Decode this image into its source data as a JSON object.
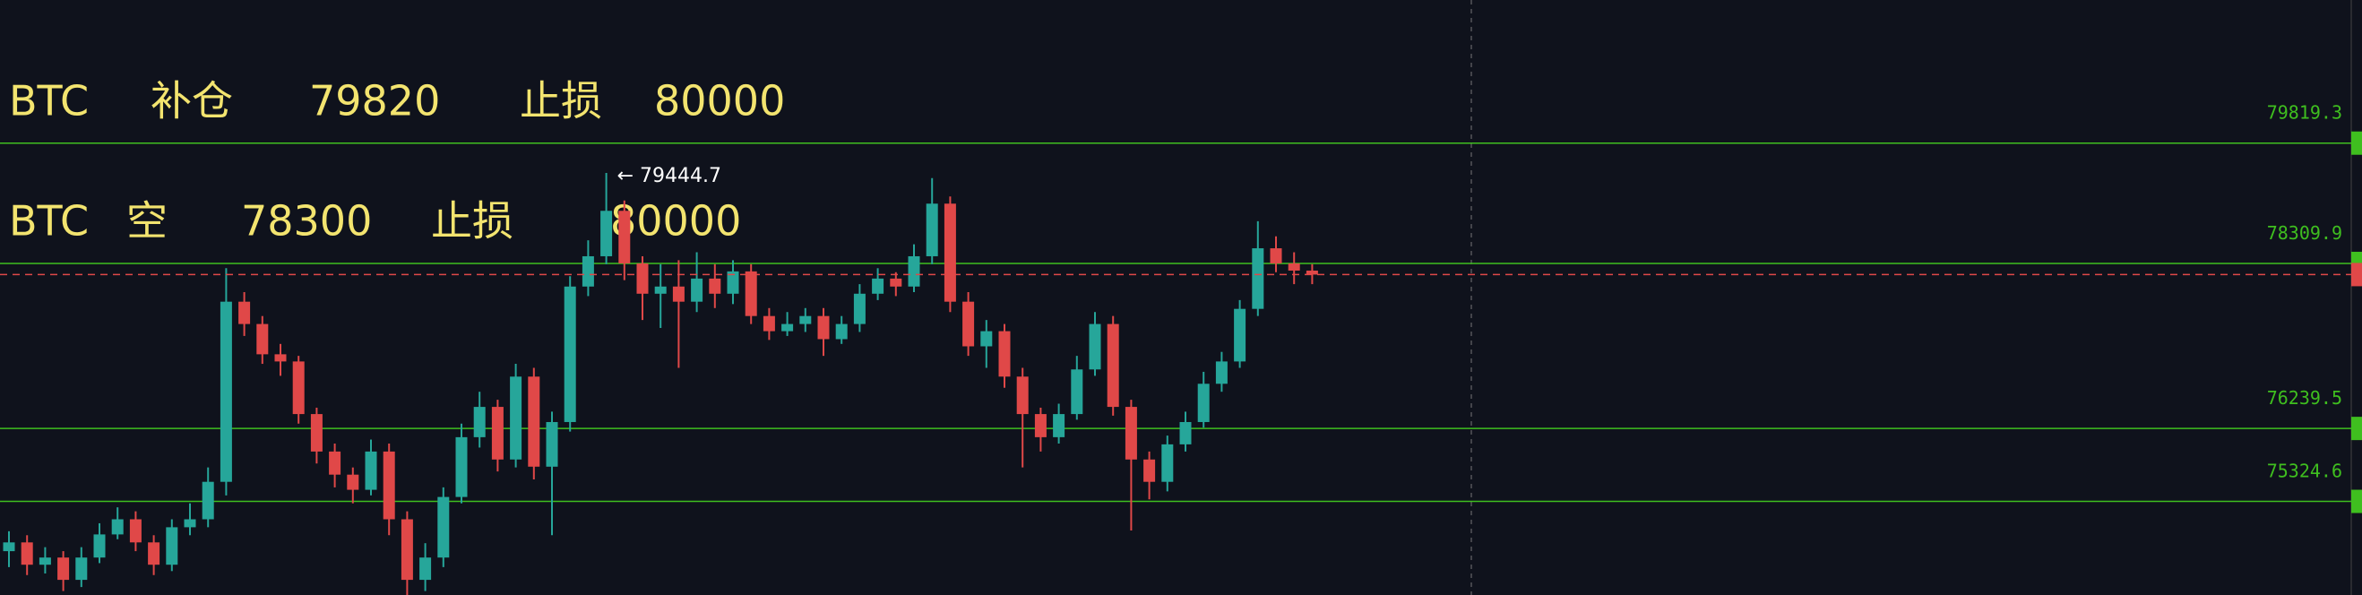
{
  "chart_data": {
    "type": "candlestick",
    "notes": [
      {
        "symbol": "BTC",
        "action": "补仓",
        "price": 79820,
        "stop_label": "止损",
        "stop": 80000
      },
      {
        "symbol": "BTC",
        "action": "空",
        "price": 78300,
        "stop_label": "止损",
        "stop": 80000
      }
    ],
    "annotation": "← 79444.7",
    "levels": [
      79819.3,
      78309.9,
      76239.5,
      75324.6
    ],
    "level_color": "#3fbf1f",
    "up_color": "#26a69a",
    "down_color": "#e04848",
    "price_line_color": "#e04848",
    "ylim": [
      74150,
      81615
    ],
    "candles": [
      [
        74700,
        74950,
        74500,
        74810
      ],
      [
        74810,
        74900,
        74400,
        74530
      ],
      [
        74530,
        74750,
        74420,
        74620
      ],
      [
        74620,
        74700,
        74200,
        74340
      ],
      [
        74340,
        74750,
        74250,
        74620
      ],
      [
        74620,
        75050,
        74550,
        74910
      ],
      [
        74910,
        75250,
        74850,
        75100
      ],
      [
        75100,
        75200,
        74700,
        74810
      ],
      [
        74810,
        74900,
        74400,
        74530
      ],
      [
        74530,
        75100,
        74450,
        75000
      ],
      [
        75000,
        75300,
        74900,
        75100
      ],
      [
        75100,
        75750,
        75000,
        75570
      ],
      [
        75570,
        78250,
        75400,
        77830
      ],
      [
        77830,
        77950,
        77400,
        77550
      ],
      [
        77550,
        77650,
        77050,
        77170
      ],
      [
        77170,
        77300,
        76900,
        77080
      ],
      [
        77080,
        77150,
        76300,
        76420
      ],
      [
        76420,
        76500,
        75800,
        75950
      ],
      [
        75950,
        76050,
        75500,
        75660
      ],
      [
        75660,
        75750,
        75300,
        75470
      ],
      [
        75470,
        76100,
        75400,
        75950
      ],
      [
        75950,
        76050,
        74900,
        75100
      ],
      [
        75100,
        75200,
        74150,
        74340
      ],
      [
        74340,
        74800,
        74200,
        74620
      ],
      [
        74620,
        75500,
        74500,
        75380
      ],
      [
        75380,
        76300,
        75300,
        76130
      ],
      [
        76130,
        76700,
        76000,
        76510
      ],
      [
        76510,
        76600,
        75700,
        75850
      ],
      [
        75850,
        77050,
        75750,
        76890
      ],
      [
        76890,
        77000,
        75600,
        75760
      ],
      [
        75760,
        76450,
        74900,
        76320
      ],
      [
        76320,
        78150,
        76200,
        78020
      ],
      [
        78020,
        78600,
        77900,
        78400
      ],
      [
        78400,
        79444.7,
        78300,
        78970
      ],
      [
        78970,
        79100,
        78100,
        78310
      ],
      [
        78310,
        78400,
        77600,
        77930
      ],
      [
        77930,
        78300,
        77500,
        78020
      ],
      [
        78020,
        78350,
        77000,
        77830
      ],
      [
        77830,
        78450,
        77700,
        78120
      ],
      [
        78120,
        78300,
        77750,
        77930
      ],
      [
        77930,
        78350,
        77800,
        78210
      ],
      [
        78210,
        78300,
        77550,
        77650
      ],
      [
        77650,
        77750,
        77350,
        77460
      ],
      [
        77460,
        77700,
        77400,
        77550
      ],
      [
        77550,
        77750,
        77450,
        77650
      ],
      [
        77650,
        77750,
        77150,
        77360
      ],
      [
        77360,
        77650,
        77300,
        77550
      ],
      [
        77550,
        78050,
        77450,
        77930
      ],
      [
        77930,
        78250,
        77850,
        78120
      ],
      [
        78120,
        78200,
        77900,
        78020
      ],
      [
        78020,
        78550,
        77950,
        78400
      ],
      [
        78400,
        79380,
        78300,
        79060
      ],
      [
        79060,
        79150,
        77700,
        77830
      ],
      [
        77830,
        77950,
        77150,
        77270
      ],
      [
        77270,
        77600,
        77000,
        77460
      ],
      [
        77460,
        77550,
        76750,
        76890
      ],
      [
        76890,
        77000,
        75750,
        76420
      ],
      [
        76420,
        76500,
        75950,
        76130
      ],
      [
        76130,
        76550,
        76050,
        76420
      ],
      [
        76420,
        77150,
        76350,
        76980
      ],
      [
        76980,
        77700,
        76900,
        77550
      ],
      [
        77550,
        77650,
        76400,
        76510
      ],
      [
        76510,
        76600,
        74960,
        75850
      ],
      [
        75850,
        75950,
        75350,
        75570
      ],
      [
        75570,
        76150,
        75450,
        76040
      ],
      [
        76040,
        76450,
        75950,
        76320
      ],
      [
        76320,
        76950,
        76250,
        76800
      ],
      [
        76800,
        77200,
        76700,
        77080
      ],
      [
        77080,
        77850,
        77000,
        77740
      ],
      [
        77740,
        78840,
        77650,
        78500
      ],
      [
        78500,
        78650,
        78200,
        78310
      ],
      [
        78310,
        78450,
        78050,
        78220
      ],
      [
        78220,
        78300,
        78050,
        78170
      ]
    ]
  }
}
